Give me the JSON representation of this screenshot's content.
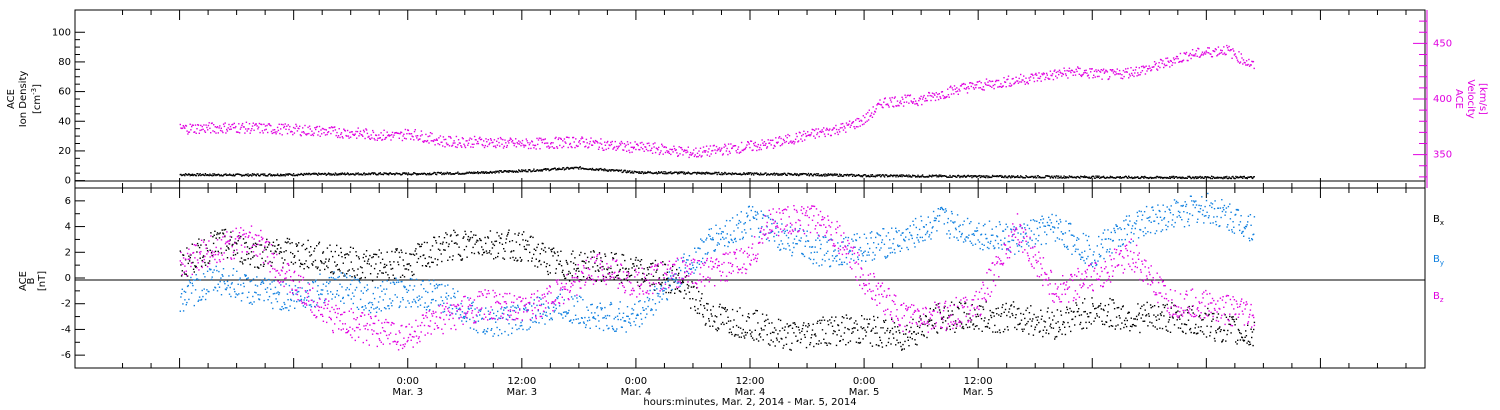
{
  "chart_data": [
    {
      "type": "scatter",
      "panel": "top",
      "left_axis": {
        "label_lines": [
          "ACE",
          "Ion Density"
        ],
        "unit": "[cm",
        "unit_sup": "-3",
        "unit_close": "]",
        "ylim": [
          -5,
          115
        ],
        "ticks": [
          0,
          20,
          40,
          60,
          80,
          100
        ]
      },
      "right_axis": {
        "label_lines": [
          "ACE",
          "Velocity"
        ],
        "unit": "[km/s]",
        "ylim": [
          320,
          480
        ],
        "ticks": [
          350,
          400,
          450
        ],
        "color": "#e000e0"
      },
      "series": [
        {
          "color": "#000000",
          "axis": "left",
          "points": [
            [
              -24,
              4.5
            ],
            [
              -18,
              4.2
            ],
            [
              -12,
              4.5
            ],
            [
              -6,
              5
            ],
            [
              0,
              5
            ],
            [
              6,
              5.5
            ],
            [
              12,
              7
            ],
            [
              18,
              9
            ],
            [
              24,
              6
            ],
            [
              30,
              5.5
            ],
            [
              36,
              5
            ],
            [
              42,
              4.5
            ],
            [
              48,
              3.8
            ],
            [
              54,
              3.5
            ],
            [
              60,
              3.2
            ],
            [
              66,
              3
            ],
            [
              72,
              2.8
            ],
            [
              78,
              2.5
            ],
            [
              84,
              2.6
            ],
            [
              89,
              2.5
            ]
          ]
        },
        {
          "color": "#e000e0",
          "axis": "right",
          "points": [
            [
              -24,
              374
            ],
            [
              -18,
              375
            ],
            [
              -12,
              373
            ],
            [
              -6,
              370
            ],
            [
              -1,
              367
            ],
            [
              0,
              370
            ],
            [
              4,
              362
            ],
            [
              8,
              362
            ],
            [
              12,
              360
            ],
            [
              18,
              362
            ],
            [
              22,
              358
            ],
            [
              26,
              356
            ],
            [
              30,
              352
            ],
            [
              34,
              356
            ],
            [
              38,
              360
            ],
            [
              42,
              368
            ],
            [
              46,
              375
            ],
            [
              48,
              382
            ],
            [
              50,
              398
            ],
            [
              54,
              400
            ],
            [
              58,
              410
            ],
            [
              62,
              415
            ],
            [
              66,
              420
            ],
            [
              70,
              425
            ],
            [
              74,
              422
            ],
            [
              78,
              428
            ],
            [
              82,
              440
            ],
            [
              86,
              445
            ],
            [
              89,
              430
            ]
          ]
        }
      ]
    },
    {
      "type": "scatter",
      "panel": "bottom",
      "left_axis": {
        "label_lines": [
          "ACE",
          "B"
        ],
        "unit": "[nT]",
        "ylim": [
          -7,
          7
        ],
        "ticks": [
          -6,
          -4,
          -2,
          0,
          2,
          4,
          6
        ]
      },
      "legend": [
        {
          "name": "B",
          "sub": "x",
          "color": "#000000"
        },
        {
          "name": "B",
          "sub": "y",
          "color": "#1080e0"
        },
        {
          "name": "B",
          "sub": "z",
          "color": "#e000e0"
        }
      ],
      "series": [
        {
          "name": "Bx",
          "color": "#000000",
          "points": [
            [
              -24,
              1
            ],
            [
              -20,
              2.8
            ],
            [
              -16,
              2
            ],
            [
              -12,
              2
            ],
            [
              -8,
              1.5
            ],
            [
              -4,
              1
            ],
            [
              0,
              1.2
            ],
            [
              4,
              2.5
            ],
            [
              8,
              2.8
            ],
            [
              12,
              2.5
            ],
            [
              16,
              1
            ],
            [
              20,
              1
            ],
            [
              24,
              0.5
            ],
            [
              28,
              0
            ],
            [
              32,
              -3
            ],
            [
              36,
              -3.5
            ],
            [
              40,
              -4.5
            ],
            [
              44,
              -4
            ],
            [
              48,
              -4
            ],
            [
              52,
              -4.5
            ],
            [
              56,
              -3
            ],
            [
              60,
              -3
            ],
            [
              64,
              -3
            ],
            [
              68,
              -3.5
            ],
            [
              72,
              -2.5
            ],
            [
              76,
              -3
            ],
            [
              80,
              -3
            ],
            [
              84,
              -3.5
            ],
            [
              89,
              -4.5
            ]
          ]
        },
        {
          "name": "By",
          "color": "#1080e0",
          "points": [
            [
              -24,
              -1.5
            ],
            [
              -20,
              0
            ],
            [
              -16,
              -1
            ],
            [
              -12,
              -1.5
            ],
            [
              -8,
              -0.5
            ],
            [
              -4,
              -1.5
            ],
            [
              0,
              -1
            ],
            [
              4,
              -1.5
            ],
            [
              8,
              -3.5
            ],
            [
              12,
              -3
            ],
            [
              16,
              -2
            ],
            [
              20,
              -3
            ],
            [
              24,
              -3
            ],
            [
              28,
              0
            ],
            [
              32,
              3
            ],
            [
              36,
              4.5
            ],
            [
              40,
              3
            ],
            [
              44,
              2
            ],
            [
              48,
              2.5
            ],
            [
              52,
              3
            ],
            [
              56,
              4.5
            ],
            [
              60,
              3.5
            ],
            [
              64,
              3
            ],
            [
              68,
              4
            ],
            [
              72,
              2
            ],
            [
              76,
              4
            ],
            [
              80,
              5
            ],
            [
              84,
              5.5
            ],
            [
              89,
              4
            ]
          ]
        },
        {
          "name": "Bz",
          "color": "#e000e0",
          "points": [
            [
              -24,
              1
            ],
            [
              -20,
              2.5
            ],
            [
              -16,
              3
            ],
            [
              -12,
              -0.5
            ],
            [
              -8,
              -3
            ],
            [
              -4,
              -4
            ],
            [
              0,
              -4.5
            ],
            [
              4,
              -3
            ],
            [
              8,
              -2
            ],
            [
              12,
              -2.5
            ],
            [
              16,
              -1
            ],
            [
              20,
              1
            ],
            [
              24,
              -0.5
            ],
            [
              28,
              0.5
            ],
            [
              32,
              0.5
            ],
            [
              36,
              1.5
            ],
            [
              38,
              4.5
            ],
            [
              40,
              4.5
            ],
            [
              44,
              4.5
            ],
            [
              48,
              0
            ],
            [
              52,
              -3
            ],
            [
              56,
              -3
            ],
            [
              60,
              -2
            ],
            [
              64,
              4
            ],
            [
              68,
              -1
            ],
            [
              72,
              0
            ],
            [
              76,
              2
            ],
            [
              80,
              -2
            ],
            [
              84,
              -2
            ],
            [
              89,
              -3
            ]
          ]
        }
      ]
    }
  ],
  "xaxis": {
    "xlim": [
      -35,
      107
    ],
    "ticks": [
      {
        "t": 0,
        "top": "0:00",
        "bottom": "Mar. 3"
      },
      {
        "t": 12,
        "top": "12:00",
        "bottom": "Mar. 3"
      },
      {
        "t": 24,
        "top": "0:00",
        "bottom": "Mar. 4"
      },
      {
        "t": 36,
        "top": "12:00",
        "bottom": "Mar. 4"
      },
      {
        "t": 48,
        "top": "0:00",
        "bottom": "Mar. 5"
      },
      {
        "t": 60,
        "top": "12:00",
        "bottom": "Mar. 5"
      }
    ],
    "title": "hours:minutes, Mar.  2, 2014 - Mar.  5, 2014"
  }
}
